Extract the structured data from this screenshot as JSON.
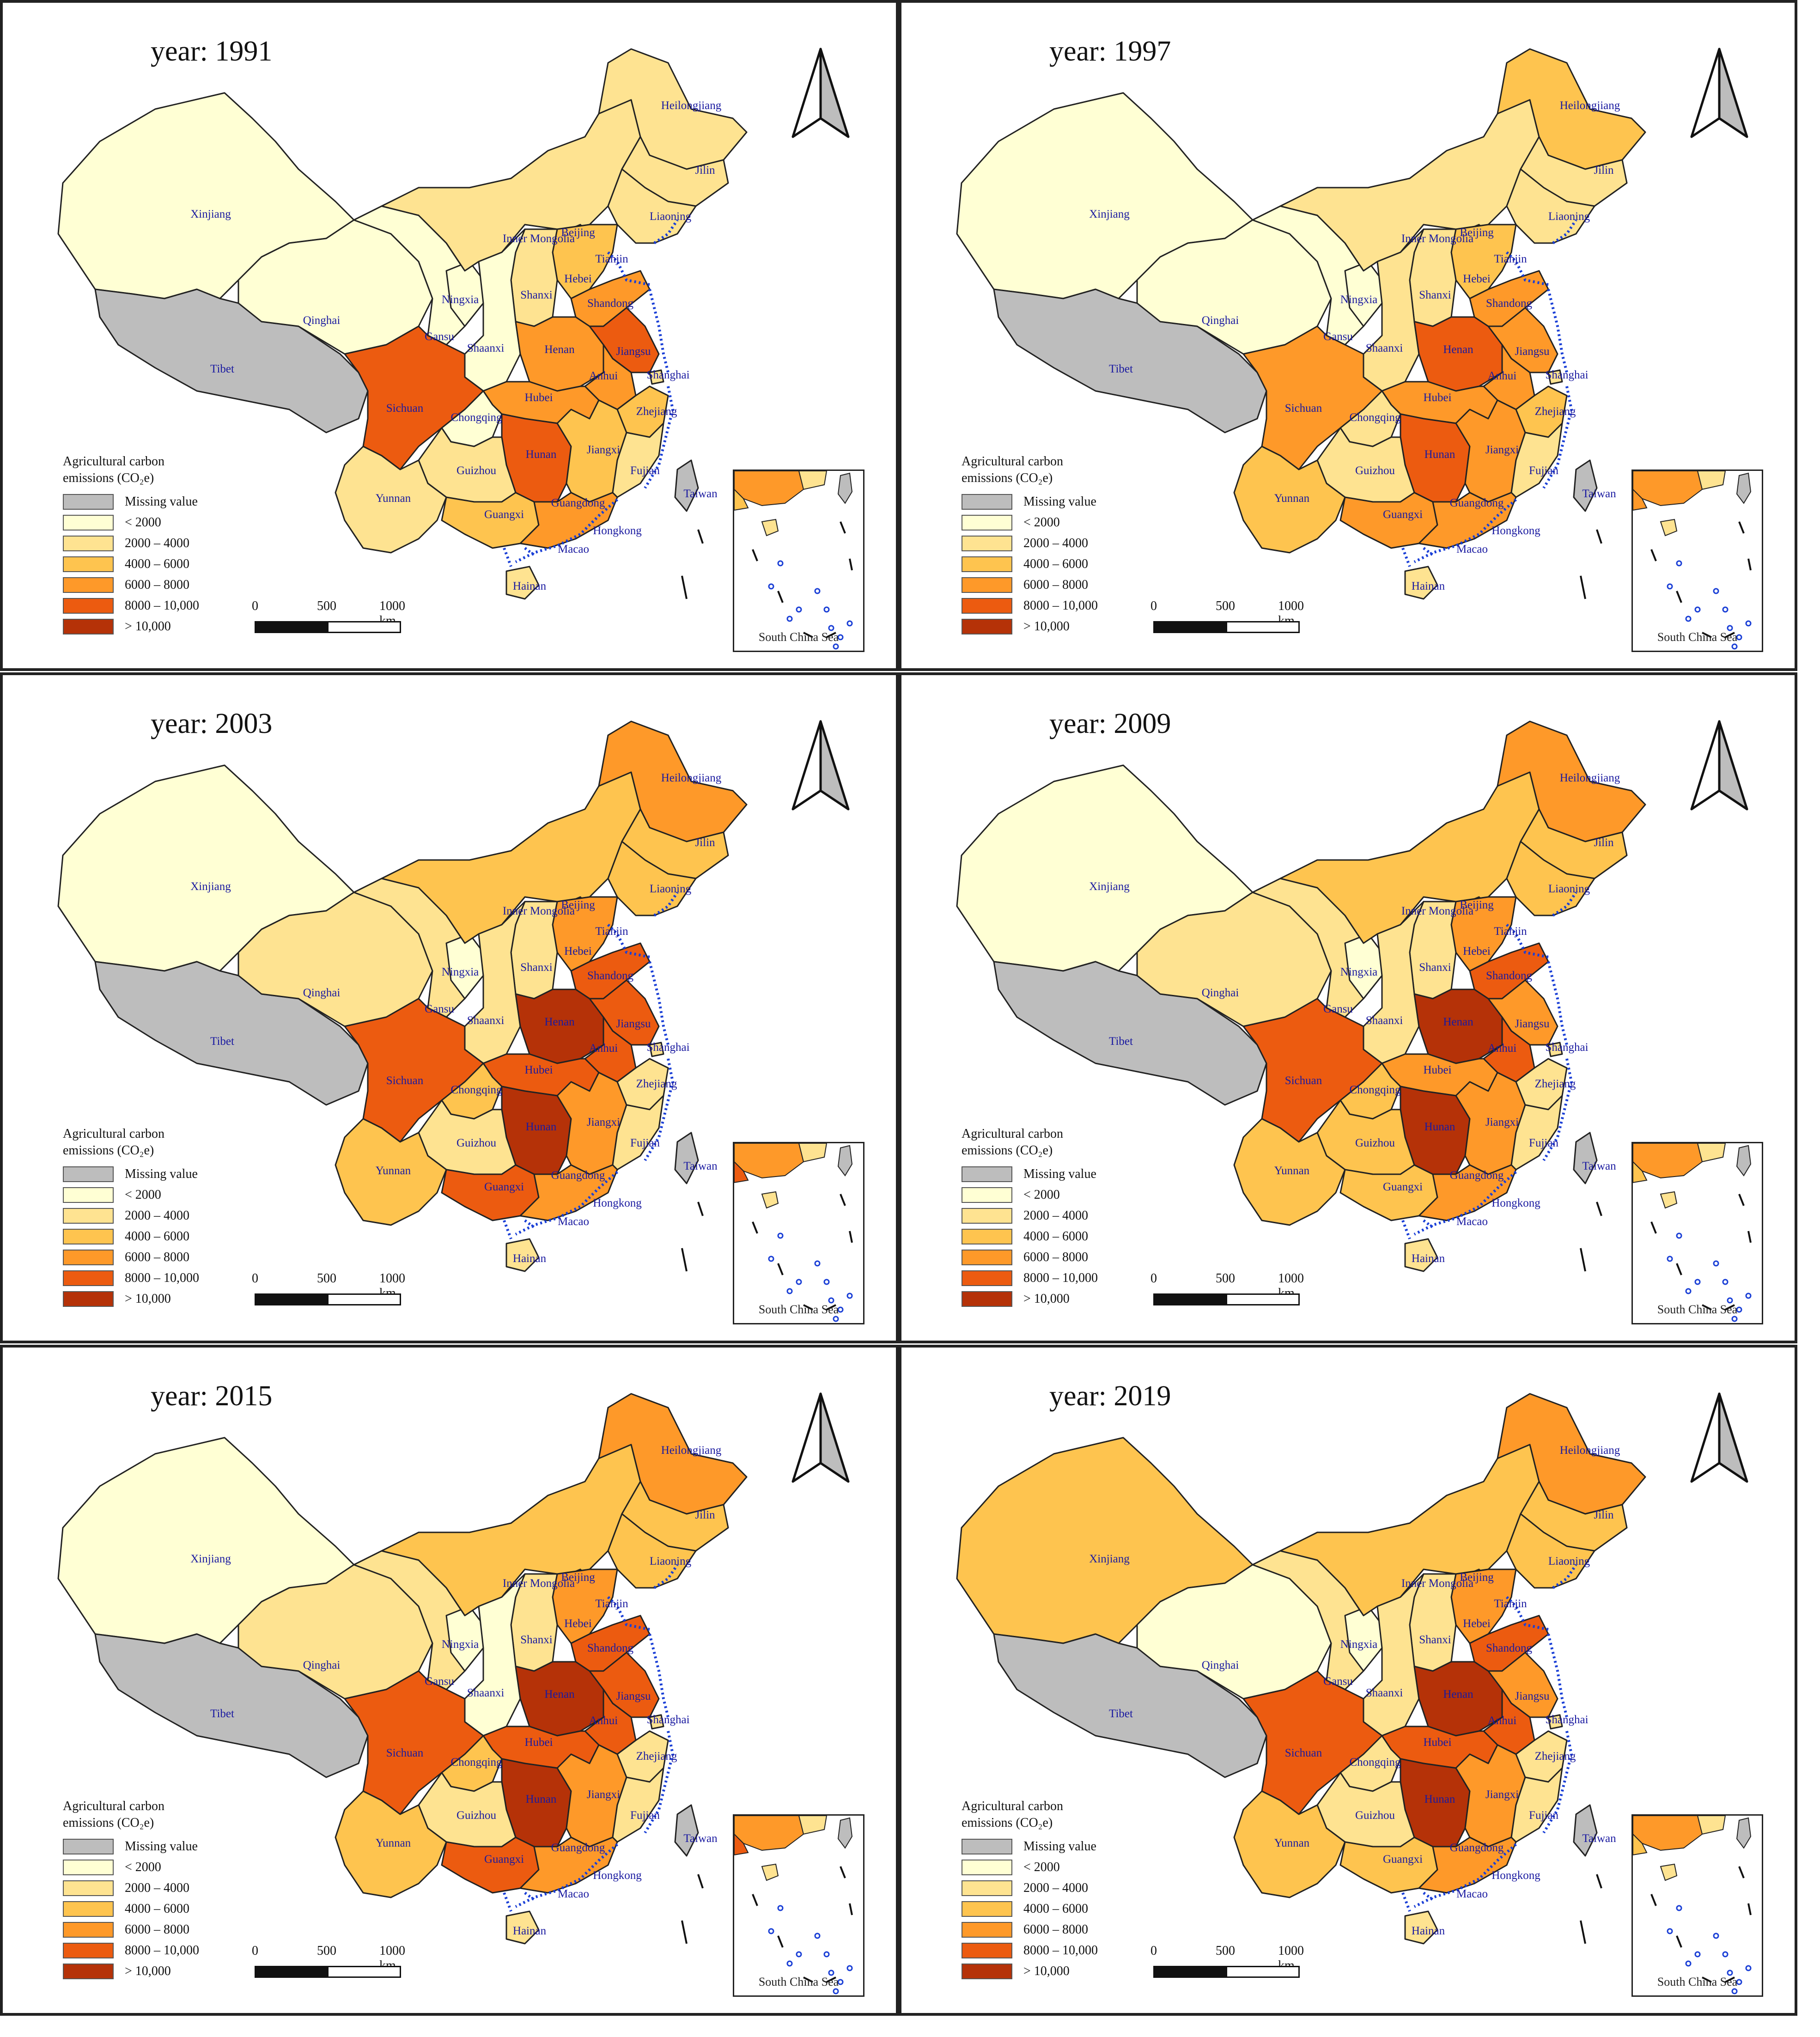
{
  "panels": [
    {
      "year_label": "year: 1991",
      "classes": {
        "Xinjiang": 1,
        "Tibet": 0,
        "Qinghai": 1,
        "Gansu": 1,
        "Ningxia": 1,
        "Inner Mongolia": 2,
        "Heilongjiang": 2,
        "Jilin": 2,
        "Liaoning": 2,
        "Beijing": 1,
        "Tianjin": 1,
        "Hebei": 3,
        "Shanxi": 2,
        "Shaanxi": 1,
        "Henan": 4,
        "Shandong": 4,
        "Jiangsu": 5,
        "Anhui": 4,
        "Shanghai": 2,
        "Hubei": 4,
        "Sichuan": 5,
        "Chongqing": 1,
        "Hunan": 5,
        "Jiangxi": 3,
        "Zhejiang": 3,
        "Fujian": 2,
        "Guizhou": 2,
        "Yunnan": 2,
        "Guangxi": 3,
        "Guangdong": 4,
        "Hainan": 2,
        "Taiwan": 0
      }
    },
    {
      "year_label": "year: 1997",
      "classes": {
        "Xinjiang": 1,
        "Tibet": 0,
        "Qinghai": 1,
        "Gansu": 1,
        "Ningxia": 1,
        "Inner Mongolia": 2,
        "Heilongjiang": 3,
        "Jilin": 2,
        "Liaoning": 2,
        "Beijing": 1,
        "Tianjin": 1,
        "Hebei": 3,
        "Shanxi": 2,
        "Shaanxi": 2,
        "Henan": 5,
        "Shandong": 4,
        "Jiangsu": 4,
        "Anhui": 4,
        "Shanghai": 2,
        "Hubei": 4,
        "Sichuan": 4,
        "Chongqing": 2,
        "Hunan": 5,
        "Jiangxi": 4,
        "Zhejiang": 3,
        "Fujian": 2,
        "Guizhou": 2,
        "Yunnan": 3,
        "Guangxi": 4,
        "Guangdong": 4,
        "Hainan": 2,
        "Taiwan": 0
      }
    },
    {
      "year_label": "year: 2003",
      "classes": {
        "Xinjiang": 1,
        "Tibet": 0,
        "Qinghai": 2,
        "Gansu": 2,
        "Ningxia": 1,
        "Inner Mongolia": 3,
        "Heilongjiang": 4,
        "Jilin": 3,
        "Liaoning": 3,
        "Beijing": 1,
        "Tianjin": 1,
        "Hebei": 4,
        "Shanxi": 2,
        "Shaanxi": 2,
        "Henan": 6,
        "Shandong": 5,
        "Jiangsu": 5,
        "Anhui": 5,
        "Shanghai": 2,
        "Hubei": 5,
        "Sichuan": 5,
        "Chongqing": 3,
        "Hunan": 6,
        "Jiangxi": 4,
        "Zhejiang": 2,
        "Fujian": 2,
        "Guizhou": 2,
        "Yunnan": 3,
        "Guangxi": 5,
        "Guangdong": 4,
        "Hainan": 2,
        "Taiwan": 0
      }
    },
    {
      "year_label": "year: 2009",
      "classes": {
        "Xinjiang": 1,
        "Tibet": 0,
        "Qinghai": 2,
        "Gansu": 2,
        "Ningxia": 1,
        "Inner Mongolia": 3,
        "Heilongjiang": 4,
        "Jilin": 3,
        "Liaoning": 3,
        "Beijing": 1,
        "Tianjin": 1,
        "Hebei": 4,
        "Shanxi": 2,
        "Shaanxi": 2,
        "Henan": 6,
        "Shandong": 5,
        "Jiangsu": 4,
        "Anhui": 5,
        "Shanghai": 2,
        "Hubei": 4,
        "Sichuan": 5,
        "Chongqing": 3,
        "Hunan": 6,
        "Jiangxi": 4,
        "Zhejiang": 2,
        "Fujian": 2,
        "Guizhou": 3,
        "Yunnan": 3,
        "Guangxi": 3,
        "Guangdong": 4,
        "Hainan": 2,
        "Taiwan": 0
      }
    },
    {
      "year_label": "year: 2015",
      "classes": {
        "Xinjiang": 1,
        "Tibet": 0,
        "Qinghai": 2,
        "Gansu": 2,
        "Ningxia": 1,
        "Inner Mongolia": 3,
        "Heilongjiang": 4,
        "Jilin": 3,
        "Liaoning": 3,
        "Beijing": 1,
        "Tianjin": 1,
        "Hebei": 4,
        "Shanxi": 2,
        "Shaanxi": 1,
        "Henan": 6,
        "Shandong": 5,
        "Jiangsu": 5,
        "Anhui": 5,
        "Shanghai": 2,
        "Hubei": 5,
        "Sichuan": 5,
        "Chongqing": 3,
        "Hunan": 6,
        "Jiangxi": 4,
        "Zhejiang": 2,
        "Fujian": 2,
        "Guizhou": 2,
        "Yunnan": 3,
        "Guangxi": 5,
        "Guangdong": 4,
        "Hainan": 2,
        "Taiwan": 0
      }
    },
    {
      "year_label": "year: 2019",
      "classes": {
        "Xinjiang": 3,
        "Tibet": 0,
        "Qinghai": 1,
        "Gansu": 2,
        "Ningxia": 1,
        "Inner Mongolia": 3,
        "Heilongjiang": 4,
        "Jilin": 3,
        "Liaoning": 3,
        "Beijing": 1,
        "Tianjin": 1,
        "Hebei": 4,
        "Shanxi": 2,
        "Shaanxi": 2,
        "Henan": 6,
        "Shandong": 5,
        "Jiangsu": 4,
        "Anhui": 5,
        "Shanghai": 2,
        "Hubei": 5,
        "Sichuan": 5,
        "Chongqing": 2,
        "Hunan": 6,
        "Jiangxi": 4,
        "Zhejiang": 2,
        "Fujian": 2,
        "Guizhou": 2,
        "Yunnan": 3,
        "Guangxi": 3,
        "Guangdong": 4,
        "Hainan": 2,
        "Taiwan": 0
      }
    }
  ],
  "legend": {
    "title_line1": "Agricultural carbon",
    "title_line2": "emissions (CO₂e)",
    "items": [
      {
        "label": "Missing value",
        "color": "#bdbdbd"
      },
      {
        "label": "< 2000",
        "color": "#ffffd4"
      },
      {
        "label": "2000 – 4000",
        "color": "#fee391"
      },
      {
        "label": "4000 – 6000",
        "color": "#fec44f"
      },
      {
        "label": "6000 – 8000",
        "color": "#fe9929"
      },
      {
        "label": "8000 – 10,000",
        "color": "#ec5b10"
      },
      {
        "label": "> 10,000",
        "color": "#b53208"
      }
    ]
  },
  "scale": {
    "t0": "0",
    "t1": "500",
    "t2": "1000 km"
  },
  "inset_caption": "South China Sea",
  "extra_labels": {
    "Hongkong": "Hongkong",
    "Macao": "Macao"
  },
  "colors": {
    "border": "#222222",
    "coast": "#1a3fd6",
    "label": "#1a1aa0"
  }
}
